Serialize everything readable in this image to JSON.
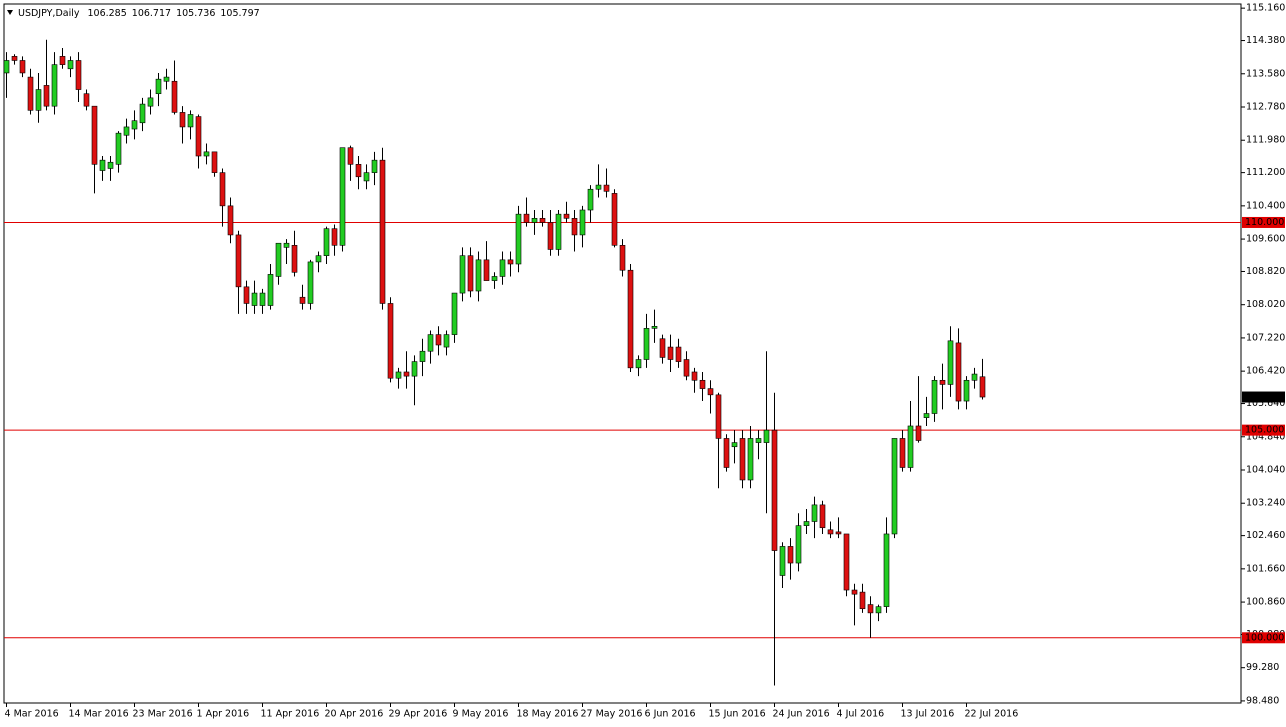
{
  "chart_data": {
    "type": "candlestick",
    "header": {
      "symbol": "USDJPY,Daily",
      "ohlc": [
        106.285,
        106.717,
        105.736,
        105.797
      ]
    },
    "up_color": "#22cc22",
    "down_color": "#dd1111",
    "wick_color": "#000000",
    "hline_color": "#e00000",
    "ylim": [
      98.43,
      115.26
    ],
    "yticks": [
      {
        "value": 115.16,
        "label": "115.160"
      },
      {
        "value": 114.38,
        "label": "114.380"
      },
      {
        "value": 113.58,
        "label": "113.580"
      },
      {
        "value": 112.78,
        "label": "112.780"
      },
      {
        "value": 111.98,
        "label": "111.980"
      },
      {
        "value": 111.2,
        "label": "111.200"
      },
      {
        "value": 110.4,
        "label": "110.400"
      },
      {
        "value": 109.6,
        "label": "109.600"
      },
      {
        "value": 108.82,
        "label": "108.820"
      },
      {
        "value": 108.02,
        "label": "108.020"
      },
      {
        "value": 107.22,
        "label": "107.220"
      },
      {
        "value": 106.42,
        "label": "106.420"
      },
      {
        "value": 105.64,
        "label": "105.640"
      },
      {
        "value": 104.84,
        "label": "104.840"
      },
      {
        "value": 104.04,
        "label": "104.040"
      },
      {
        "value": 103.24,
        "label": "103.240"
      },
      {
        "value": 102.46,
        "label": "102.460"
      },
      {
        "value": 101.66,
        "label": "101.660"
      },
      {
        "value": 100.86,
        "label": "100.860"
      },
      {
        "value": 100.08,
        "label": "100.080"
      },
      {
        "value": 99.28,
        "label": "99.280"
      },
      {
        "value": 98.48,
        "label": "98.480"
      }
    ],
    "hlines": [
      {
        "value": 110,
        "label": "110.000"
      },
      {
        "value": 105,
        "label": "105.000"
      },
      {
        "value": 100,
        "label": "100.000"
      }
    ],
    "last_price": {
      "value": 105.797,
      "label": "105.797"
    },
    "categories": [
      "4 Mar 2016",
      null,
      null,
      null,
      null,
      null,
      null,
      null,
      "14 Mar 2016",
      null,
      null,
      null,
      null,
      null,
      null,
      null,
      "23 Mar 2016",
      null,
      null,
      null,
      null,
      null,
      null,
      null,
      "1 Apr 2016",
      null,
      null,
      null,
      null,
      null,
      null,
      null,
      "11 Apr 2016",
      null,
      null,
      null,
      null,
      null,
      null,
      null,
      "20 Apr 2016",
      null,
      null,
      null,
      null,
      null,
      null,
      null,
      "29 Apr 2016",
      null,
      null,
      null,
      null,
      null,
      null,
      null,
      "9 May 2016",
      null,
      null,
      null,
      null,
      null,
      null,
      null,
      "18 May 2016",
      null,
      null,
      null,
      null,
      null,
      null,
      null,
      "27 May 2016",
      null,
      null,
      null,
      null,
      null,
      null,
      null,
      "6 Jun 2016",
      null,
      null,
      null,
      null,
      null,
      null,
      null,
      "15 Jun 2016",
      null,
      null,
      null,
      null,
      null,
      null,
      null,
      "24 Jun 2016",
      null,
      null,
      null,
      null,
      null,
      null,
      null,
      "4 Jul 2016",
      null,
      null,
      null,
      null,
      null,
      null,
      null,
      "13 Jul 2016",
      null,
      null,
      null,
      null,
      null,
      null,
      null,
      "22 Jul 2016",
      null,
      null
    ],
    "open": [
      113.6,
      114.0,
      113.9,
      113.5,
      112.7,
      113.3,
      112.8,
      114.0,
      113.7,
      113.9,
      113.1,
      112.8,
      111.25,
      111.3,
      111.4,
      112.1,
      112.25,
      112.4,
      112.8,
      113.1,
      113.4,
      113.4,
      112.65,
      112.3,
      112.55,
      111.6,
      111.7,
      111.2,
      110.4,
      109.7,
      108.45,
      108.0,
      108.0,
      108.0,
      108.7,
      109.4,
      109.45,
      108.2,
      108.05,
      109.05,
      109.2,
      109.85,
      109.45,
      111.8,
      111.4,
      111.0,
      111.2,
      111.5,
      108.05,
      106.25,
      106.4,
      106.3,
      106.65,
      106.9,
      107.3,
      107.0,
      107.3,
      108.3,
      109.2,
      108.35,
      109.1,
      108.6,
      108.7,
      109.1,
      109.0,
      110.2,
      110.0,
      110.1,
      110.0,
      109.35,
      110.2,
      110.1,
      109.7,
      110.3,
      110.8,
      110.9,
      110.7,
      109.45,
      108.85,
      106.5,
      106.7,
      107.45,
      107.2,
      107.0,
      107.0,
      106.7,
      106.4,
      106.2,
      106.0,
      105.85,
      104.8,
      104.6,
      104.8,
      103.8,
      104.7,
      104.7,
      105.0,
      101.5,
      102.2,
      101.8,
      102.7,
      102.8,
      103.2,
      102.6,
      102.55,
      102.5,
      101.15,
      101.1,
      100.8,
      100.6,
      100.75,
      102.5,
      104.8,
      104.1,
      105.1,
      105.3,
      105.4,
      106.2,
      106.1,
      107.1,
      105.7,
      106.2,
      106.285
    ],
    "high": [
      114.1,
      114.05,
      114.0,
      113.7,
      113.6,
      114.4,
      114.1,
      114.2,
      114.0,
      114.1,
      113.2,
      112.8,
      111.6,
      111.6,
      112.2,
      112.5,
      112.7,
      113.0,
      113.2,
      113.6,
      113.7,
      113.9,
      112.8,
      112.7,
      112.6,
      111.9,
      111.7,
      111.3,
      110.6,
      109.8,
      108.6,
      108.6,
      108.4,
      109.0,
      109.5,
      109.6,
      109.8,
      108.5,
      109.1,
      109.3,
      109.9,
      109.95,
      111.8,
      111.85,
      111.6,
      111.4,
      111.7,
      111.8,
      108.2,
      106.5,
      106.9,
      106.8,
      107.2,
      107.4,
      107.5,
      107.4,
      108.3,
      109.4,
      109.4,
      109.3,
      109.55,
      108.8,
      109.3,
      109.3,
      110.4,
      110.6,
      110.3,
      110.3,
      110.3,
      110.3,
      110.5,
      110.3,
      110.4,
      110.9,
      111.4,
      111.3,
      110.8,
      109.6,
      109.0,
      106.8,
      107.8,
      107.9,
      107.3,
      107.3,
      107.2,
      106.9,
      106.5,
      106.4,
      106.2,
      105.9,
      104.9,
      105.0,
      105.0,
      105.1,
      105.0,
      106.9,
      105.9,
      102.3,
      102.4,
      103.0,
      103.1,
      103.4,
      103.3,
      102.8,
      102.9,
      102.5,
      101.3,
      101.3,
      101.0,
      100.8,
      102.9,
      104.8,
      105.0,
      105.7,
      106.3,
      105.8,
      106.3,
      106.6,
      107.5,
      107.45,
      106.3,
      106.5,
      106.717
    ],
    "low": [
      113.0,
      113.8,
      113.5,
      112.6,
      112.4,
      112.7,
      112.6,
      113.7,
      113.5,
      112.9,
      112.7,
      110.7,
      111.0,
      111.0,
      111.2,
      111.9,
      112.0,
      112.2,
      112.6,
      112.8,
      113.2,
      112.6,
      111.9,
      112.0,
      111.3,
      111.4,
      111.1,
      109.9,
      109.5,
      107.8,
      107.8,
      107.8,
      107.8,
      107.9,
      108.5,
      109.0,
      108.7,
      107.9,
      107.9,
      108.8,
      109.0,
      109.2,
      109.3,
      111.0,
      110.8,
      110.8,
      110.9,
      107.9,
      106.15,
      106.0,
      106.0,
      105.6,
      106.3,
      106.6,
      106.8,
      106.8,
      107.1,
      108.1,
      108.2,
      108.1,
      108.6,
      108.4,
      108.5,
      108.7,
      108.8,
      109.9,
      109.7,
      109.9,
      109.2,
      109.2,
      110.0,
      109.3,
      109.4,
      110.0,
      110.6,
      110.6,
      109.4,
      108.7,
      106.4,
      106.3,
      106.5,
      107.1,
      106.6,
      106.4,
      106.5,
      106.2,
      105.9,
      105.7,
      105.4,
      103.6,
      104.0,
      104.2,
      103.6,
      103.6,
      104.3,
      103.0,
      98.85,
      101.2,
      101.4,
      101.6,
      102.5,
      102.4,
      102.5,
      102.4,
      102.4,
      101.0,
      100.3,
      100.6,
      100.0,
      100.4,
      100.6,
      102.4,
      104.0,
      104.0,
      104.7,
      105.1,
      105.2,
      105.5,
      105.8,
      105.5,
      105.5,
      106.0,
      105.736
    ],
    "close": [
      113.9,
      113.9,
      113.6,
      112.7,
      113.2,
      112.8,
      113.8,
      113.8,
      113.9,
      113.2,
      112.8,
      111.4,
      111.5,
      111.45,
      112.15,
      112.3,
      112.45,
      112.85,
      113.0,
      113.45,
      113.5,
      112.65,
      112.3,
      112.6,
      111.6,
      111.7,
      111.2,
      110.4,
      109.7,
      108.45,
      108.05,
      108.3,
      108.3,
      108.75,
      109.5,
      109.5,
      108.8,
      108.05,
      109.05,
      109.2,
      109.85,
      109.45,
      111.8,
      111.4,
      111.1,
      111.2,
      111.5,
      108.05,
      106.25,
      106.4,
      106.3,
      106.65,
      106.9,
      107.3,
      107.05,
      107.3,
      108.3,
      109.2,
      108.35,
      109.1,
      108.6,
      108.7,
      109.1,
      109.0,
      110.2,
      110.0,
      110.1,
      110.0,
      109.35,
      110.2,
      110.1,
      109.7,
      110.3,
      110.8,
      110.9,
      110.75,
      109.45,
      108.85,
      106.5,
      106.7,
      107.45,
      107.5,
      106.75,
      106.7,
      106.65,
      106.3,
      106.2,
      106.0,
      105.85,
      104.8,
      104.1,
      104.7,
      103.8,
      104.8,
      104.8,
      105.0,
      102.1,
      102.2,
      101.8,
      102.7,
      102.8,
      103.2,
      102.65,
      102.5,
      102.5,
      101.15,
      101.05,
      100.7,
      100.6,
      100.75,
      102.5,
      104.8,
      104.1,
      105.1,
      104.75,
      105.4,
      106.2,
      106.1,
      107.15,
      105.7,
      106.2,
      106.35,
      105.797
    ]
  }
}
